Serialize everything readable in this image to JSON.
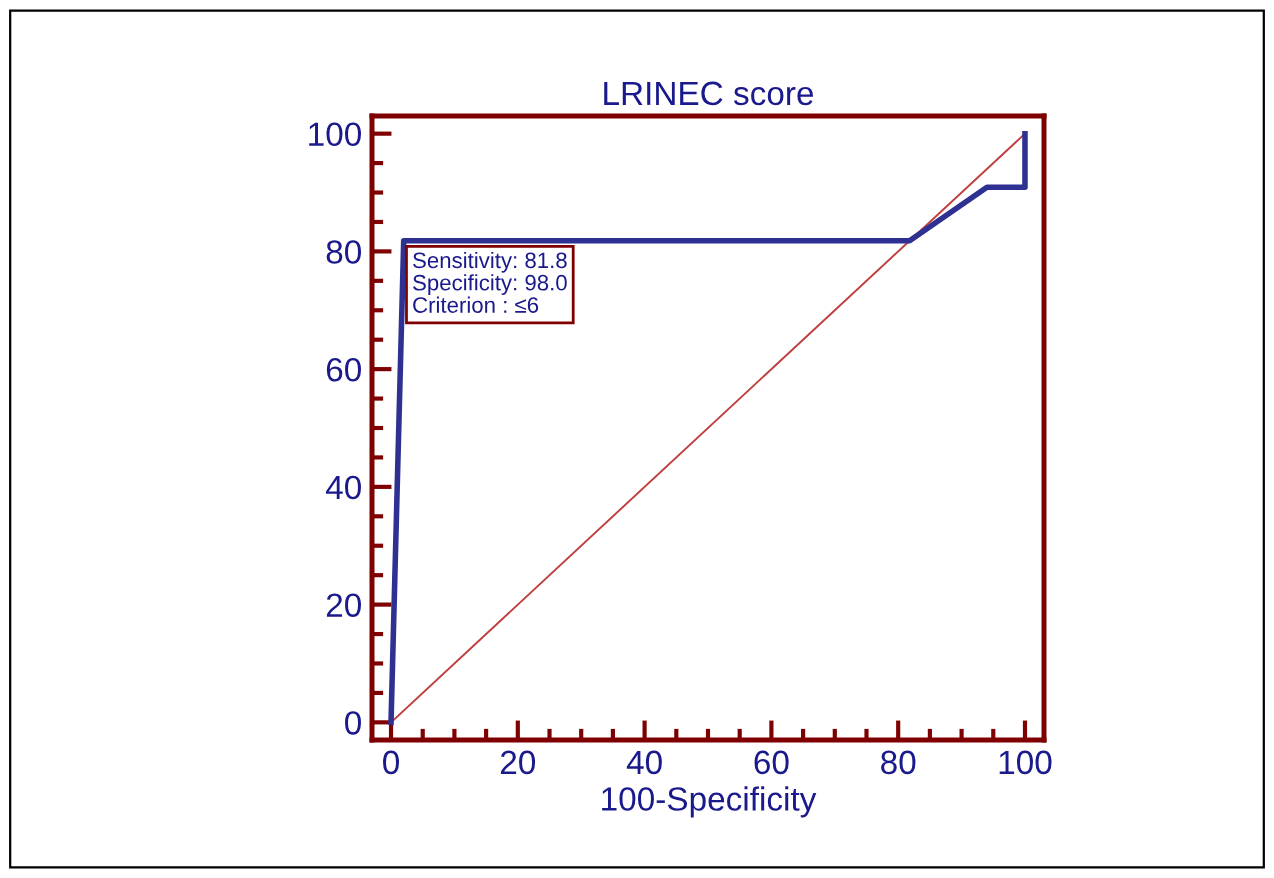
{
  "chart_data": {
    "type": "line",
    "title": "LRINEC score",
    "xlabel": "100-Specificity",
    "series": [
      {
        "color": "#2e3192",
        "x": [
          0,
          2,
          81.8,
          94,
          100,
          100
        ],
        "values": [
          0,
          81.8,
          81.8,
          90.9,
          90.9,
          100
        ]
      },
      {
        "color": "#c04040",
        "x": [
          0,
          100
        ],
        "values": [
          0,
          100
        ]
      }
    ],
    "xlim": [
      -3,
      103
    ],
    "ylim": [
      -3,
      103
    ],
    "xticks": [
      0,
      20,
      40,
      60,
      80,
      100
    ],
    "yticks": [
      0,
      20,
      40,
      60,
      80,
      100
    ],
    "grid": false,
    "legend": false,
    "marker": "none",
    "line_style": "solid",
    "annotations": [
      {
        "text": "Sensitivity: 81.8\nSpecificity: 98.0\nCriterion : ≤6",
        "x": 2,
        "y": 81.8
      }
    ]
  }
}
